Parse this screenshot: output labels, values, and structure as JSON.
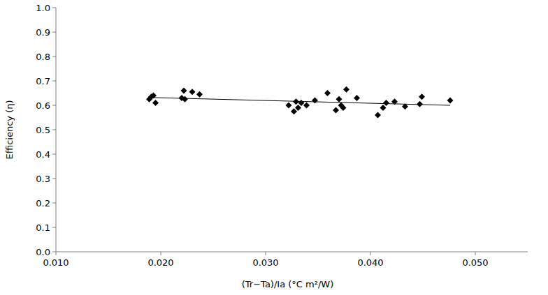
{
  "chart_data": {
    "type": "scatter",
    "x_label": "(Tr−Ta)/Ia (°C m²/W)",
    "y_label": "Efficiency (η)",
    "xlim": [
      0.01,
      0.055
    ],
    "ylim": [
      0,
      1.0
    ],
    "xticks": [
      {
        "value": 0.01,
        "label": "0.010"
      },
      {
        "value": 0.02,
        "label": "0.020"
      },
      {
        "value": 0.03,
        "label": "0.030"
      },
      {
        "value": 0.04,
        "label": "0.040"
      },
      {
        "value": 0.05,
        "label": "0.050"
      }
    ],
    "yticks": [
      {
        "value": 0,
        "label": "0.0"
      },
      0.1,
      0.2,
      0.3,
      0.4,
      0.5,
      0.6,
      0.7,
      0.8,
      0.9,
      {
        "value": 1.0,
        "label": "1.0"
      }
    ],
    "grid": false,
    "series": [
      {
        "type": "scatter",
        "marker": "diamond",
        "color": "#000000",
        "x": [
          0.0189,
          0.0191,
          0.0193,
          0.0195,
          0.022,
          0.0222,
          0.0223,
          0.023,
          0.0237,
          0.0322,
          0.0327,
          0.0329,
          0.0331,
          0.0334,
          0.0339,
          0.0347,
          0.0359,
          0.0367,
          0.037,
          0.0372,
          0.0374,
          0.0377,
          0.0387,
          0.0407,
          0.0412,
          0.0415,
          0.0423,
          0.0433,
          0.0447,
          0.0449,
          0.0476
        ],
        "values": [
          0.625,
          0.635,
          0.64,
          0.61,
          0.63,
          0.66,
          0.625,
          0.655,
          0.645,
          0.6,
          0.575,
          0.615,
          0.59,
          0.61,
          0.6,
          0.62,
          0.65,
          0.58,
          0.625,
          0.6,
          0.59,
          0.665,
          0.63,
          0.56,
          0.59,
          0.61,
          0.615,
          0.595,
          0.605,
          0.635,
          0.62
        ]
      },
      {
        "type": "line",
        "line_style": "solid",
        "color": "#000000",
        "x": [
          0.019,
          0.0476
        ],
        "values": [
          0.632,
          0.6
        ]
      }
    ]
  }
}
